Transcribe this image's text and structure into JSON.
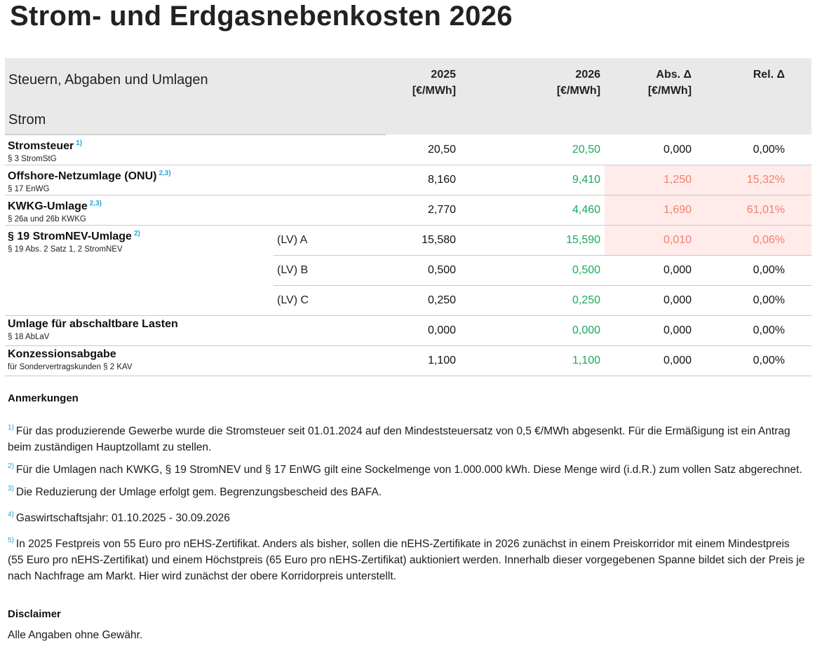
{
  "page": {
    "title": "Strom- und Erdgasnebenkosten 2026"
  },
  "table": {
    "header_title": "Steuern, Abgaben und Umlagen",
    "section": "Strom",
    "columns": {
      "y2025": {
        "label": "2025",
        "unit": "[€/MWh]"
      },
      "y2026": {
        "label": "2026",
        "unit": "[€/MWh]"
      },
      "abs": {
        "label": "Abs. Δ",
        "unit": "[€/MWh]"
      },
      "rel": {
        "label": "Rel. Δ",
        "unit": ""
      }
    },
    "rows": [
      {
        "name": "Stromsteuer",
        "fn": "1)",
        "sub": "§ 3 StromStG",
        "variant": "",
        "v2025": "20,50",
        "v2026": "20,50",
        "abs": "0,000",
        "rel": "0,00%",
        "increase": false
      },
      {
        "name": "Offshore-Netzumlage (ONU)",
        "fn": "2,3)",
        "sub": "§ 17 EnWG",
        "variant": "",
        "v2025": "8,160",
        "v2026": "9,410",
        "abs": "1,250",
        "rel": "15,32%",
        "increase": true
      },
      {
        "name": "KWKG-Umlage",
        "fn": "2,3)",
        "sub": "§ 26a und 26b KWKG",
        "variant": "",
        "v2025": "2,770",
        "v2026": "4,460",
        "abs": "1,690",
        "rel": "61,01%",
        "increase": true
      },
      {
        "name": "§ 19 StromNEV-Umlage",
        "fn": "2)",
        "sub": "§ 19 Abs. 2 Satz 1, 2 StromNEV",
        "variant": "(LV) A",
        "v2025": "15,580",
        "v2026": "15,590",
        "abs": "0,010",
        "rel": "0,06%",
        "increase": true
      },
      {
        "variant": "(LV) B",
        "v2025": "0,500",
        "v2026": "0,500",
        "abs": "0,000",
        "rel": "0,00%",
        "increase": false
      },
      {
        "variant": "(LV) C",
        "v2025": "0,250",
        "v2026": "0,250",
        "abs": "0,000",
        "rel": "0,00%",
        "increase": false
      },
      {
        "name": "Umlage für abschaltbare Lasten",
        "fn": "",
        "sub": "§ 18 AbLaV",
        "variant": "",
        "v2025": "0,000",
        "v2026": "0,000",
        "abs": "0,000",
        "rel": "0,00%",
        "increase": false
      },
      {
        "name": "Konzessionsabgabe",
        "fn": "",
        "sub": "für Sondervertragskunden § 2 KAV",
        "variant": "",
        "v2025": "1,100",
        "v2026": "1,100",
        "abs": "0,000",
        "rel": "0,00%",
        "increase": false
      }
    ]
  },
  "notes": {
    "heading": "Anmerkungen",
    "items": [
      {
        "mark": "1)",
        "text": "Für das produzierende Gewerbe wurde die Stromsteuer seit 01.01.2024 auf den Mindeststeuersatz von 0,5 €/MWh abgesenkt. Für die Ermäßigung ist ein Antrag beim zuständigen Hauptzollamt zu stellen."
      },
      {
        "mark": "2)",
        "text": "Für die Umlagen nach KWKG, § 19 StromNEV und § 17 EnWG gilt eine Sockelmenge von 1.000.000 kWh. Diese Menge wird (i.d.R.) zum vollen Satz abgerechnet."
      },
      {
        "mark": "3)",
        "text": "Die Reduzierung der Umlage erfolgt gem. Begrenzungsbescheid des BAFA."
      },
      {
        "mark": "4)",
        "text": "Gaswirtschaftsjahr: 01.10.2025 - 30.09.2026"
      },
      {
        "mark": "5)",
        "text": "In 2025 Festpreis von 55 Euro pro nEHS-Zertifikat. Anders als bisher, sollen die nEHS-Zertifikate in 2026 zunächst in einem Preiskorridor mit einem Mindestpreis (55 Euro pro nEHS-Zertifikat) und einem Höchstpreis (65 Euro pro nEHS-Zertifikat) auktioniert werden. Innerhalb dieser vorgegebenen Spanne bildet sich der Preis je nach Nachfrage am Markt. Hier wird zunächst der obere Korridorpreis unterstellt."
      }
    ]
  },
  "disclaimer": {
    "heading": "Disclaimer",
    "text": "Alle Angaben ohne Gewähr."
  },
  "colors": {
    "header_bg": "#e9e9e9",
    "value_2026": "#1aaa5a",
    "increase_text": "#f08070",
    "increase_bg": "#ffebe9",
    "footnote": "#29a3e0"
  }
}
